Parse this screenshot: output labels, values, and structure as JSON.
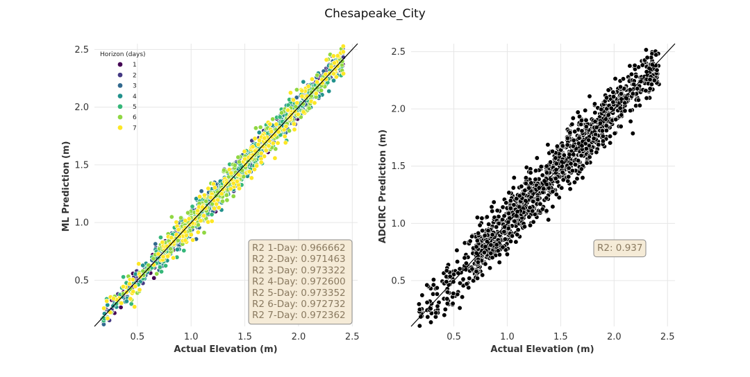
{
  "figure": {
    "title": "Chesapeake_City"
  },
  "colors": {
    "viridis": [
      "#440154",
      "#443983",
      "#31688e",
      "#21918c",
      "#35b779",
      "#90d743",
      "#fde725"
    ],
    "adcirc": "#000000",
    "box_fill": "#f5ebd7",
    "box_edge": "#8a8a8a",
    "grid": "#e6e6e6"
  },
  "chart_data": [
    {
      "type": "scatter",
      "title": "",
      "xlabel": "Actual Elevation (m)",
      "ylabel": "ML Prediction (m)",
      "xlim": [
        0.1,
        2.55
      ],
      "ylim": [
        0.1,
        2.55
      ],
      "xticks": [
        "0.5",
        "1.0",
        "1.5",
        "2.0",
        "2.5"
      ],
      "yticks": [
        "0.5",
        "1.0",
        "1.5",
        "2.0",
        "2.5"
      ],
      "grid": true,
      "identity_line": true,
      "legend": {
        "title": "Horizon (days)",
        "placement": "top-left",
        "entries": [
          "1",
          "2",
          "3",
          "4",
          "5",
          "6",
          "7"
        ]
      },
      "series_summary": {
        "x_range": [
          0.17,
          2.42
        ],
        "spread_sd": 0.06
      },
      "annotation_lines": [
        "R2 1-Day: 0.966662",
        "R2 2-Day: 0.971463",
        "R2 3-Day: 0.973322",
        "R2 4-Day: 0.972600",
        "R2 5-Day: 0.973352",
        "R2 6-Day: 0.972732",
        "R2 7-Day: 0.972362"
      ]
    },
    {
      "type": "scatter",
      "title": "",
      "xlabel": "Actual Elevation (m)",
      "ylabel": "ADCIRC Prediction (m)",
      "xlim": [
        0.1,
        2.57
      ],
      "ylim": [
        0.1,
        2.57
      ],
      "xticks": [
        "0.5",
        "1.0",
        "1.5",
        "2.0",
        "2.5"
      ],
      "yticks": [
        "0.5",
        "1.0",
        "1.5",
        "2.0",
        "2.5"
      ],
      "grid": true,
      "identity_line": true,
      "series_summary": {
        "x_range": [
          0.17,
          2.42
        ],
        "spread_sd": 0.12
      },
      "annotation_lines": [
        "R2: 0.937"
      ]
    }
  ]
}
